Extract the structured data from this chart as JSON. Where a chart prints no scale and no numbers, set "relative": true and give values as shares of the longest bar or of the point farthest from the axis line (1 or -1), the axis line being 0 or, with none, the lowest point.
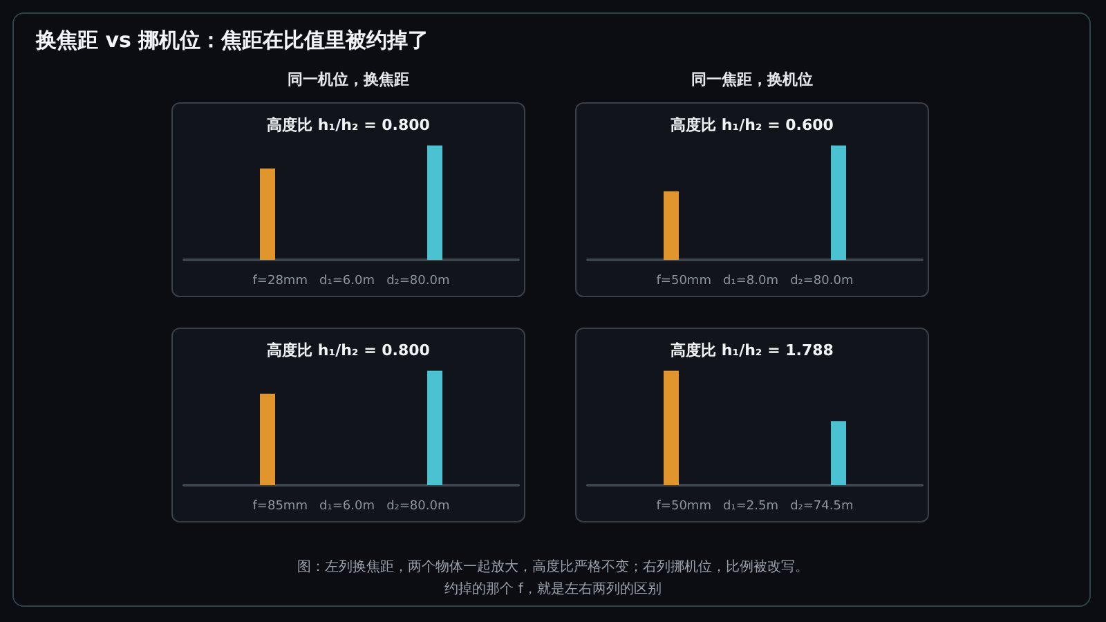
{
  "chart_data": [
    {
      "type": "bar",
      "relative": true,
      "subtitle": "同一机位，换焦距",
      "title": "高度比 h₁/h₂ = 0.800",
      "xlabel": "f=28mm   d₁=6.0m   d₂=80.0m",
      "categories": [
        null,
        null
      ],
      "values": [
        0.8,
        1
      ],
      "colors": [
        "#e0962c",
        "#4ac2d2"
      ],
      "annotations": [
        "换焦距 vs 挪机位：焦距在比值里被约掉了",
        "图：左列换焦距，两个物体一起放大，高度比严格不变；右列挪机位，比例被改写。",
        "约掉的那个 f，就是左右两列的区别"
      ]
    },
    {
      "type": "bar",
      "relative": true,
      "subtitle": "同一焦距，换机位",
      "title": "高度比 h₁/h₂ = 0.600",
      "xlabel": "f=50mm   d₁=8.0m   d₂=80.0m",
      "categories": [
        null,
        null
      ],
      "values": [
        0.6,
        1
      ],
      "colors": [
        "#e0962c",
        "#4ac2d2"
      ]
    },
    {
      "type": "bar",
      "relative": true,
      "title": "高度比 h₁/h₂ = 0.800",
      "xlabel": "f=85mm   d₁=6.0m   d₂=80.0m",
      "categories": [
        null,
        null
      ],
      "values": [
        0.8,
        1
      ],
      "colors": [
        "#e0962c",
        "#4ac2d2"
      ]
    },
    {
      "type": "bar",
      "relative": true,
      "title": "高度比 h₁/h₂ = 1.788",
      "xlabel": "f=50mm   d₁=2.5m   d₂=74.5m",
      "categories": [
        null,
        null
      ],
      "values": [
        1,
        0.56
      ],
      "colors": [
        "#e0962c",
        "#4ac2d2"
      ]
    }
  ]
}
